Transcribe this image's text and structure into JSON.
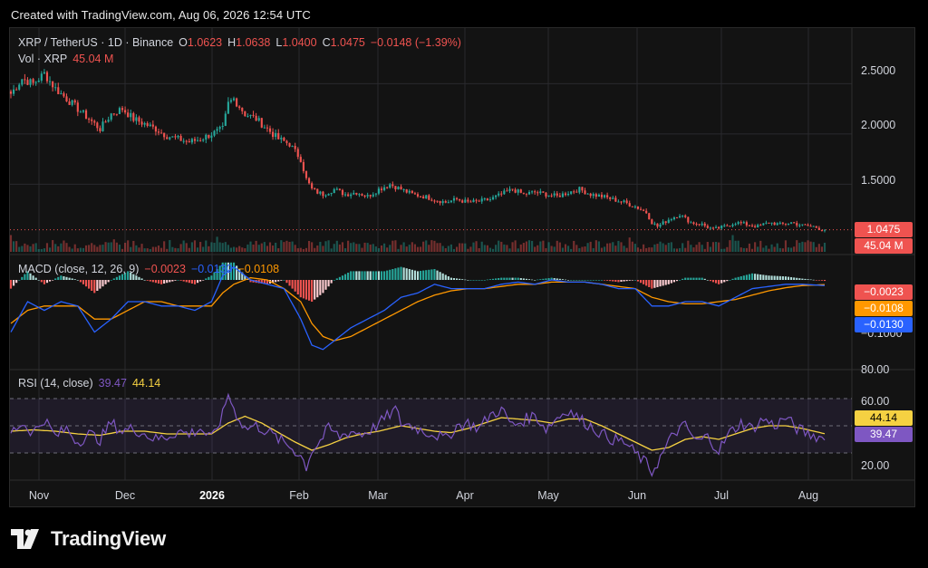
{
  "header": {
    "created": "Created with TradingView.com, Aug 06, 2026 12:54 UTC"
  },
  "brand": {
    "name": "TradingView"
  },
  "colors": {
    "up": "#26a69a",
    "down": "#ef5350",
    "macd": "#2962ff",
    "signal": "#ff9800",
    "rsi": "#7e57c2",
    "rsi_ma": "#f5d142",
    "bg": "#131313",
    "grid": "#2a2a2e"
  },
  "price_pane": {
    "legend": {
      "symbol": "XRP / TetherUS · 1D · Binance",
      "o_label": "O",
      "o": "1.0623",
      "h_label": "H",
      "h": "1.0638",
      "l_label": "L",
      "l": "1.0400",
      "c_label": "C",
      "c": "1.0475",
      "change": "−0.0148 (−1.39%)"
    },
    "volume_legend": {
      "label": "Vol · XRP",
      "value": "45.04 M"
    },
    "axis_ticks": [
      "2.5000",
      "2.0000",
      "1.5000"
    ],
    "last_price_tag": "1.0475",
    "volume_tag": "45.04 M"
  },
  "macd_pane": {
    "legend": {
      "label": "MACD (close, 12, 26, 9)",
      "hist": "−0.0023",
      "macd": "−0.0130",
      "signal": "−0.0108"
    },
    "axis_ticks": [
      "−0.1000"
    ],
    "tags": {
      "hist": "−0.0023",
      "signal": "−0.0108",
      "macd": "−0.0130"
    }
  },
  "rsi_pane": {
    "legend": {
      "label": "RSI (14, close)",
      "rsi": "39.47",
      "ma": "44.14"
    },
    "axis_ticks": [
      "80.00",
      "60.00",
      "20.00"
    ],
    "tags": {
      "ma": "44.14",
      "rsi": "39.47"
    }
  },
  "x_axis": [
    "Nov",
    "Dec",
    "2026",
    "Feb",
    "Mar",
    "Apr",
    "May",
    "Jun",
    "Jul",
    "Aug"
  ],
  "chart_data": {
    "type": "line",
    "title": "XRP / TetherUS · 1D · Binance",
    "x_labels": [
      "Nov",
      "Dec",
      "2026",
      "Feb",
      "Mar",
      "Apr",
      "May",
      "Jun",
      "Jul",
      "Aug"
    ],
    "price": {
      "ylim": [
        0.9,
        2.9
      ],
      "ticks": [
        2.5,
        2.0,
        1.5
      ],
      "anchors": [
        [
          0,
          2.4
        ],
        [
          4,
          2.55
        ],
        [
          8,
          2.5
        ],
        [
          12,
          2.6
        ],
        [
          16,
          2.45
        ],
        [
          20,
          2.35
        ],
        [
          24,
          2.25
        ],
        [
          28,
          2.15
        ],
        [
          32,
          2.05
        ],
        [
          36,
          2.2
        ],
        [
          40,
          2.25
        ],
        [
          44,
          2.15
        ],
        [
          48,
          2.1
        ],
        [
          52,
          2.05
        ],
        [
          56,
          1.98
        ],
        [
          60,
          1.95
        ],
        [
          64,
          1.92
        ],
        [
          68,
          1.95
        ],
        [
          72,
          2.0
        ],
        [
          76,
          2.05
        ],
        [
          78,
          2.3
        ],
        [
          80,
          2.35
        ],
        [
          84,
          2.2
        ],
        [
          88,
          2.15
        ],
        [
          92,
          2.05
        ],
        [
          96,
          1.95
        ],
        [
          100,
          1.9
        ],
        [
          104,
          1.75
        ],
        [
          106,
          1.55
        ],
        [
          108,
          1.45
        ],
        [
          110,
          1.42
        ],
        [
          112,
          1.4
        ],
        [
          116,
          1.45
        ],
        [
          120,
          1.4
        ],
        [
          124,
          1.42
        ],
        [
          128,
          1.38
        ],
        [
          132,
          1.45
        ],
        [
          136,
          1.5
        ],
        [
          140,
          1.45
        ],
        [
          144,
          1.4
        ],
        [
          148,
          1.38
        ],
        [
          152,
          1.35
        ],
        [
          156,
          1.32
        ],
        [
          160,
          1.35
        ],
        [
          164,
          1.32
        ],
        [
          168,
          1.33
        ],
        [
          172,
          1.35
        ],
        [
          176,
          1.4
        ],
        [
          180,
          1.45
        ],
        [
          184,
          1.4
        ],
        [
          188,
          1.42
        ],
        [
          192,
          1.4
        ],
        [
          196,
          1.38
        ],
        [
          200,
          1.42
        ],
        [
          204,
          1.45
        ],
        [
          208,
          1.4
        ],
        [
          212,
          1.38
        ],
        [
          216,
          1.35
        ],
        [
          220,
          1.32
        ],
        [
          224,
          1.28
        ],
        [
          228,
          1.22
        ],
        [
          230,
          1.12
        ],
        [
          232,
          1.08
        ],
        [
          236,
          1.15
        ],
        [
          240,
          1.2
        ],
        [
          244,
          1.12
        ],
        [
          248,
          1.1
        ],
        [
          252,
          1.05
        ],
        [
          256,
          1.08
        ],
        [
          260,
          1.12
        ],
        [
          264,
          1.1
        ],
        [
          268,
          1.08
        ],
        [
          272,
          1.12
        ],
        [
          276,
          1.1
        ],
        [
          280,
          1.12
        ],
        [
          284,
          1.09
        ],
        [
          288,
          1.08
        ],
        [
          290,
          1.06
        ],
        [
          292,
          1.0475
        ]
      ]
    },
    "macd": {
      "ylim": [
        -0.2,
        0.05
      ],
      "ticks": [
        -0.1
      ],
      "macd_anchors": [
        [
          0,
          -0.12
        ],
        [
          6,
          -0.05
        ],
        [
          12,
          -0.07
        ],
        [
          18,
          -0.05
        ],
        [
          24,
          -0.06
        ],
        [
          30,
          -0.12
        ],
        [
          36,
          -0.09
        ],
        [
          42,
          -0.05
        ],
        [
          48,
          -0.05
        ],
        [
          54,
          -0.06
        ],
        [
          60,
          -0.06
        ],
        [
          66,
          -0.07
        ],
        [
          72,
          -0.05
        ],
        [
          76,
          0.01
        ],
        [
          80,
          0.03
        ],
        [
          86,
          0.0
        ],
        [
          92,
          -0.01
        ],
        [
          98,
          -0.02
        ],
        [
          104,
          -0.09
        ],
        [
          108,
          -0.15
        ],
        [
          112,
          -0.16
        ],
        [
          116,
          -0.14
        ],
        [
          122,
          -0.11
        ],
        [
          128,
          -0.09
        ],
        [
          134,
          -0.07
        ],
        [
          140,
          -0.04
        ],
        [
          146,
          -0.03
        ],
        [
          152,
          -0.01
        ],
        [
          158,
          -0.02
        ],
        [
          164,
          -0.02
        ],
        [
          170,
          -0.02
        ],
        [
          176,
          -0.01
        ],
        [
          182,
          -0.005
        ],
        [
          188,
          -0.01
        ],
        [
          194,
          0.0
        ],
        [
          200,
          -0.005
        ],
        [
          206,
          -0.005
        ],
        [
          212,
          -0.01
        ],
        [
          218,
          -0.02
        ],
        [
          224,
          -0.02
        ],
        [
          230,
          -0.06
        ],
        [
          236,
          -0.06
        ],
        [
          242,
          -0.05
        ],
        [
          248,
          -0.05
        ],
        [
          254,
          -0.06
        ],
        [
          260,
          -0.04
        ],
        [
          266,
          -0.02
        ],
        [
          272,
          -0.015
        ],
        [
          278,
          -0.01
        ],
        [
          284,
          -0.01
        ],
        [
          292,
          -0.013
        ]
      ],
      "signal_anchors": [
        [
          0,
          -0.1
        ],
        [
          6,
          -0.07
        ],
        [
          12,
          -0.06
        ],
        [
          18,
          -0.06
        ],
        [
          24,
          -0.06
        ],
        [
          30,
          -0.09
        ],
        [
          36,
          -0.09
        ],
        [
          42,
          -0.07
        ],
        [
          48,
          -0.05
        ],
        [
          54,
          -0.05
        ],
        [
          60,
          -0.06
        ],
        [
          66,
          -0.06
        ],
        [
          72,
          -0.06
        ],
        [
          76,
          -0.03
        ],
        [
          80,
          -0.01
        ],
        [
          86,
          0.005
        ],
        [
          92,
          0.0
        ],
        [
          98,
          -0.02
        ],
        [
          104,
          -0.05
        ],
        [
          108,
          -0.1
        ],
        [
          112,
          -0.13
        ],
        [
          116,
          -0.14
        ],
        [
          122,
          -0.13
        ],
        [
          128,
          -0.11
        ],
        [
          134,
          -0.09
        ],
        [
          140,
          -0.07
        ],
        [
          146,
          -0.05
        ],
        [
          152,
          -0.035
        ],
        [
          158,
          -0.025
        ],
        [
          164,
          -0.02
        ],
        [
          170,
          -0.02
        ],
        [
          176,
          -0.015
        ],
        [
          182,
          -0.01
        ],
        [
          188,
          -0.01
        ],
        [
          194,
          -0.005
        ],
        [
          200,
          -0.005
        ],
        [
          206,
          -0.005
        ],
        [
          212,
          -0.01
        ],
        [
          218,
          -0.015
        ],
        [
          224,
          -0.02
        ],
        [
          230,
          -0.04
        ],
        [
          236,
          -0.05
        ],
        [
          242,
          -0.055
        ],
        [
          248,
          -0.055
        ],
        [
          254,
          -0.05
        ],
        [
          260,
          -0.045
        ],
        [
          266,
          -0.035
        ],
        [
          272,
          -0.025
        ],
        [
          278,
          -0.018
        ],
        [
          284,
          -0.013
        ],
        [
          292,
          -0.0108
        ]
      ]
    },
    "rsi": {
      "ylim": [
        10,
        90
      ],
      "ticks": [
        80,
        60,
        20
      ],
      "bands": [
        30,
        70
      ],
      "rsi_anchors": [
        [
          0,
          45
        ],
        [
          4,
          52
        ],
        [
          8,
          45
        ],
        [
          12,
          55
        ],
        [
          16,
          42
        ],
        [
          20,
          48
        ],
        [
          24,
          38
        ],
        [
          28,
          44
        ],
        [
          32,
          40
        ],
        [
          36,
          52
        ],
        [
          40,
          46
        ],
        [
          44,
          48
        ],
        [
          48,
          44
        ],
        [
          52,
          40
        ],
        [
          56,
          42
        ],
        [
          60,
          46
        ],
        [
          64,
          44
        ],
        [
          68,
          48
        ],
        [
          72,
          40
        ],
        [
          76,
          58
        ],
        [
          78,
          74
        ],
        [
          80,
          62
        ],
        [
          84,
          48
        ],
        [
          88,
          50
        ],
        [
          92,
          46
        ],
        [
          96,
          40
        ],
        [
          100,
          35
        ],
        [
          104,
          28
        ],
        [
          106,
          20
        ],
        [
          108,
          32
        ],
        [
          110,
          36
        ],
        [
          114,
          48
        ],
        [
          118,
          42
        ],
        [
          122,
          46
        ],
        [
          126,
          44
        ],
        [
          130,
          48
        ],
        [
          134,
          55
        ],
        [
          138,
          62
        ],
        [
          140,
          52
        ],
        [
          144,
          50
        ],
        [
          148,
          46
        ],
        [
          152,
          44
        ],
        [
          156,
          40
        ],
        [
          160,
          50
        ],
        [
          164,
          52
        ],
        [
          168,
          48
        ],
        [
          172,
          58
        ],
        [
          176,
          62
        ],
        [
          180,
          50
        ],
        [
          184,
          54
        ],
        [
          188,
          58
        ],
        [
          192,
          48
        ],
        [
          196,
          56
        ],
        [
          200,
          62
        ],
        [
          204,
          55
        ],
        [
          208,
          50
        ],
        [
          212,
          44
        ],
        [
          216,
          40
        ],
        [
          220,
          38
        ],
        [
          224,
          30
        ],
        [
          228,
          22
        ],
        [
          230,
          16
        ],
        [
          234,
          30
        ],
        [
          238,
          45
        ],
        [
          242,
          50
        ],
        [
          246,
          38
        ],
        [
          250,
          42
        ],
        [
          254,
          32
        ],
        [
          258,
          45
        ],
        [
          262,
          52
        ],
        [
          266,
          48
        ],
        [
          270,
          55
        ],
        [
          274,
          50
        ],
        [
          278,
          56
        ],
        [
          282,
          48
        ],
        [
          286,
          44
        ],
        [
          290,
          42
        ],
        [
          292,
          39.47
        ]
      ],
      "ma_anchors": [
        [
          0,
          46
        ],
        [
          8,
          47
        ],
        [
          16,
          46
        ],
        [
          24,
          44
        ],
        [
          32,
          43
        ],
        [
          40,
          46
        ],
        [
          48,
          46
        ],
        [
          56,
          44
        ],
        [
          64,
          44
        ],
        [
          72,
          44
        ],
        [
          78,
          52
        ],
        [
          84,
          57
        ],
        [
          90,
          52
        ],
        [
          96,
          45
        ],
        [
          102,
          38
        ],
        [
          108,
          32
        ],
        [
          114,
          36
        ],
        [
          120,
          41
        ],
        [
          126,
          44
        ],
        [
          132,
          46
        ],
        [
          140,
          50
        ],
        [
          146,
          48
        ],
        [
          152,
          46
        ],
        [
          158,
          45
        ],
        [
          164,
          48
        ],
        [
          170,
          52
        ],
        [
          176,
          56
        ],
        [
          182,
          55
        ],
        [
          188,
          54
        ],
        [
          194,
          52
        ],
        [
          200,
          55
        ],
        [
          206,
          55
        ],
        [
          212,
          50
        ],
        [
          218,
          44
        ],
        [
          224,
          38
        ],
        [
          230,
          32
        ],
        [
          236,
          34
        ],
        [
          242,
          40
        ],
        [
          248,
          42
        ],
        [
          254,
          40
        ],
        [
          260,
          44
        ],
        [
          266,
          48
        ],
        [
          272,
          50
        ],
        [
          278,
          50
        ],
        [
          284,
          48
        ],
        [
          292,
          44.14
        ]
      ]
    }
  }
}
